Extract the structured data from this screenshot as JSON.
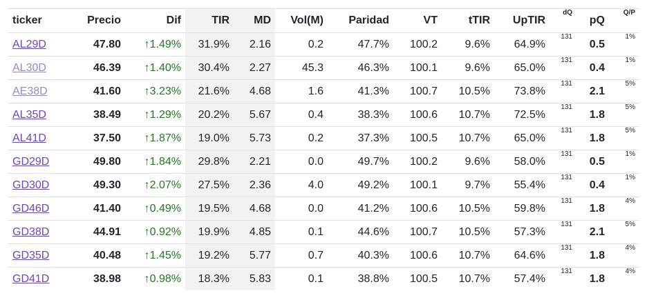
{
  "columns": [
    "ticker",
    "Precio",
    "Dif",
    "TIR",
    "MD",
    "Vol(M)",
    "Paridad",
    "VT",
    "tTIR",
    "UpTIR",
    "dQ",
    "pQ",
    "Q/P"
  ],
  "rows": [
    {
      "ticker": "AL29D",
      "precio": "47.80",
      "dif": "↑1.49%",
      "tir": "31.9%",
      "md": "2.16",
      "vol": "0.2",
      "paridad": "47.7%",
      "vt": "100.2",
      "ttir": "9.6%",
      "uptir": "64.9%",
      "dq": "131",
      "pq": "0.5",
      "qp": "1%"
    },
    {
      "ticker": "AL30D",
      "precio": "46.39",
      "dif": "↑1.40%",
      "tir": "30.4%",
      "md": "2.27",
      "vol": "45.3",
      "paridad": "46.3%",
      "vt": "100.1",
      "ttir": "9.6%",
      "uptir": "65.0%",
      "dq": "131",
      "pq": "0.4",
      "qp": "1%"
    },
    {
      "ticker": "AE38D",
      "precio": "41.60",
      "dif": "↑3.23%",
      "tir": "21.6%",
      "md": "4.68",
      "vol": "1.6",
      "paridad": "41.3%",
      "vt": "100.7",
      "ttir": "10.5%",
      "uptir": "73.8%",
      "dq": "131",
      "pq": "2.1",
      "qp": "5%"
    },
    {
      "ticker": "AL35D",
      "precio": "38.49",
      "dif": "↑1.29%",
      "tir": "20.2%",
      "md": "5.67",
      "vol": "0.4",
      "paridad": "38.3%",
      "vt": "100.6",
      "ttir": "10.7%",
      "uptir": "72.5%",
      "dq": "131",
      "pq": "1.8",
      "qp": "5%"
    },
    {
      "ticker": "AL41D",
      "precio": "37.50",
      "dif": "↑1.87%",
      "tir": "19.0%",
      "md": "5.73",
      "vol": "0.2",
      "paridad": "37.3%",
      "vt": "100.5",
      "ttir": "10.7%",
      "uptir": "65.0%",
      "dq": "131",
      "pq": "1.8",
      "qp": "5%"
    },
    {
      "ticker": "GD29D",
      "precio": "49.80",
      "dif": "↑1.84%",
      "tir": "29.8%",
      "md": "2.21",
      "vol": "0.0",
      "paridad": "49.7%",
      "vt": "100.2",
      "ttir": "9.6%",
      "uptir": "58.0%",
      "dq": "131",
      "pq": "0.5",
      "qp": "1%"
    },
    {
      "ticker": "GD30D",
      "precio": "49.30",
      "dif": "↑2.07%",
      "tir": "27.5%",
      "md": "2.36",
      "vol": "4.0",
      "paridad": "49.2%",
      "vt": "100.1",
      "ttir": "9.7%",
      "uptir": "55.4%",
      "dq": "131",
      "pq": "0.4",
      "qp": "1%"
    },
    {
      "ticker": "GD46D",
      "precio": "41.40",
      "dif": "↑0.49%",
      "tir": "19.5%",
      "md": "4.68",
      "vol": "0.0",
      "paridad": "41.2%",
      "vt": "100.6",
      "ttir": "10.5%",
      "uptir": "59.8%",
      "dq": "131",
      "pq": "1.8",
      "qp": "4%"
    },
    {
      "ticker": "GD38D",
      "precio": "44.91",
      "dif": "↑0.92%",
      "tir": "19.9%",
      "md": "4.85",
      "vol": "0.1",
      "paridad": "44.6%",
      "vt": "100.7",
      "ttir": "10.5%",
      "uptir": "57.3%",
      "dq": "131",
      "pq": "2.1",
      "qp": "5%"
    },
    {
      "ticker": "GD35D",
      "precio": "40.48",
      "dif": "↑1.45%",
      "tir": "19.2%",
      "md": "5.77",
      "vol": "0.7",
      "paridad": "40.3%",
      "vt": "100.6",
      "ttir": "10.7%",
      "uptir": "64.6%",
      "dq": "131",
      "pq": "1.8",
      "qp": "4%"
    },
    {
      "ticker": "GD41D",
      "precio": "38.98",
      "dif": "↑0.98%",
      "tir": "18.3%",
      "md": "5.83",
      "vol": "0.1",
      "paridad": "38.8%",
      "vt": "100.5",
      "ttir": "10.7%",
      "uptir": "57.4%",
      "dq": "131",
      "pq": "1.8",
      "qp": "4%"
    }
  ],
  "visited_tickers": [
    "AL30D",
    "AE38D"
  ],
  "colors": {
    "link": "#6f42c1",
    "link_visited": "#9a86c4",
    "positive": "#1f7a1f",
    "highlight_column": "#f3f2f1",
    "border": "#dee2e6"
  }
}
